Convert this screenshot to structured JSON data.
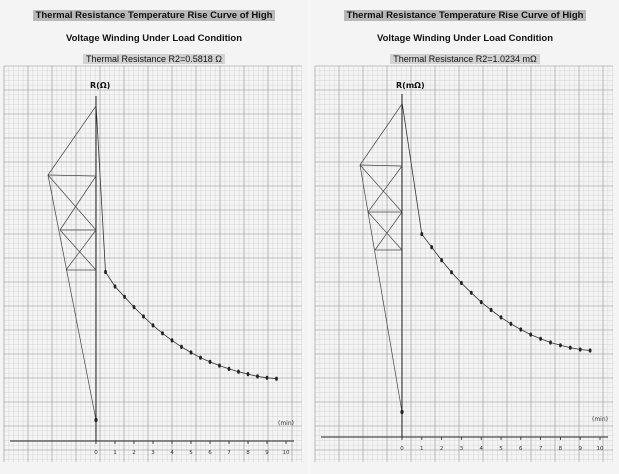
{
  "chart_data": [
    {
      "type": "scatter",
      "title_line1": "Thermal Resistance Temperature Rise Curve of High",
      "title_line2": "Voltage Winding Under Load Condition",
      "subtitle": "Thermal Resistance R2=0.5818 Ω",
      "ylabel": "R(Ω)",
      "xlabel": "(min)",
      "x_ticks": [
        0,
        1,
        2,
        3,
        4,
        5,
        6,
        7,
        8,
        9,
        10
      ],
      "x": [
        0.5,
        1.0,
        1.5,
        2.0,
        2.5,
        3.0,
        3.5,
        4.0,
        4.5,
        5.0,
        5.5,
        6.0,
        6.5,
        7.0,
        7.5,
        8.0,
        8.5,
        9.0,
        9.5
      ],
      "values": [
        0.641,
        0.61,
        0.588,
        0.566,
        0.546,
        0.527,
        0.51,
        0.495,
        0.481,
        0.469,
        0.458,
        0.449,
        0.441,
        0.434,
        0.428,
        0.423,
        0.418,
        0.415,
        0.413
      ],
      "point_style": "dots with fitted curve",
      "ylim": [
        0.28,
        1.0
      ],
      "ylim_px_ref": true,
      "grid": true
    },
    {
      "type": "scatter",
      "title_line1": "Thermal Resistance Temperature Rise Curve of High",
      "title_line2": "Voltage Winding Under Load Condition",
      "subtitle": "Thermal Resistance R2=1.0234 mΩ",
      "ylabel": "R(mΩ)",
      "xlabel": "(min)",
      "x_ticks": [
        0,
        1,
        2,
        3,
        4,
        5,
        6,
        7,
        8,
        9,
        10
      ],
      "x": [
        1.0,
        1.5,
        2.0,
        2.5,
        3.0,
        3.5,
        4.0,
        4.5,
        5.0,
        5.5,
        6.0,
        6.5,
        7.0,
        7.5,
        8.0,
        8.5,
        9.0,
        9.5
      ],
      "values": [
        0.716,
        0.688,
        0.66,
        0.634,
        0.611,
        0.59,
        0.57,
        0.553,
        0.537,
        0.523,
        0.511,
        0.5,
        0.491,
        0.483,
        0.477,
        0.472,
        0.468,
        0.466
      ],
      "point_style": "dots with fitted curve",
      "ylim": [
        0.28,
        1.0
      ],
      "grid": true
    }
  ],
  "colors": {
    "grid_minor": "#d0d0d0",
    "grid_major": "#9a9a9a",
    "ink": "#222222",
    "title_bg": "#b9b9b9"
  }
}
